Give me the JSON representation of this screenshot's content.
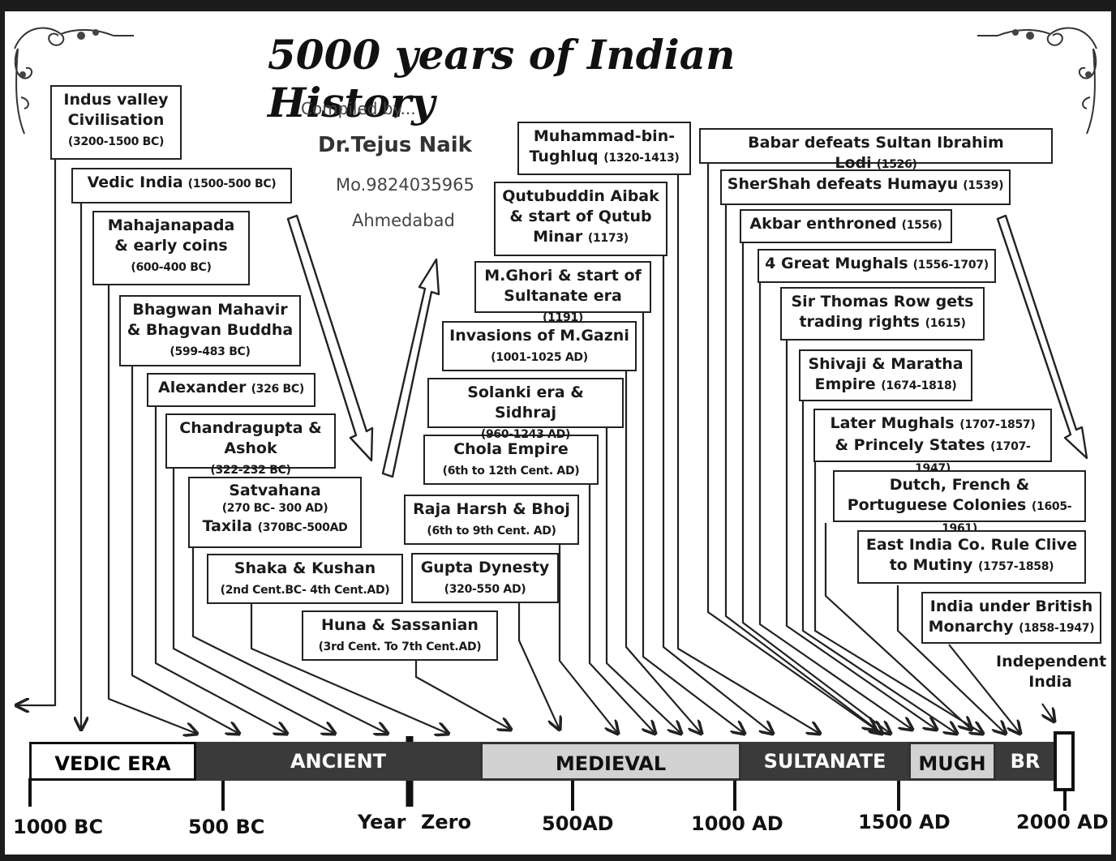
{
  "title": "5000 years of Indian History",
  "credits": {
    "compiled_by": "Compiled by...",
    "name": "Dr.Tejus Naik",
    "phone": "Mo.9824035965",
    "city": "Ahmedabad"
  },
  "events": [
    {
      "name": "Indus valley Civilisation",
      "date": "(3200-1500 BC)"
    },
    {
      "name": "Vedic India",
      "date": "(1500-500 BC)"
    },
    {
      "name": "Mahajanapada & early coins",
      "date": "(600-400 BC)"
    },
    {
      "name": "Bhagwan Mahavir & Bhagvan Buddha",
      "date": "(599-483 BC)"
    },
    {
      "name": "Alexander",
      "date": "(326 BC)"
    },
    {
      "name": "Chandragupta & Ashok",
      "date": "(322-232 BC)"
    },
    {
      "name": "Satvahana",
      "date": "(270 BC- 300 AD)",
      "name2": "Taxila",
      "date2": "(370BC-500AD"
    },
    {
      "name": "Shaka & Kushan",
      "date": "(2nd Cent.BC- 4th Cent.AD)"
    },
    {
      "name": "Huna & Sassanian",
      "date": "(3rd Cent. To 7th Cent.AD)"
    },
    {
      "name": "Gupta Dynesty",
      "date": "(320-550 AD)"
    },
    {
      "name": "Raja Harsh & Bhoj",
      "date": "(6th to 9th Cent. AD)"
    },
    {
      "name": "Chola Empire",
      "date": "(6th to 12th Cent. AD)"
    },
    {
      "name": "Solanki era & Sidhraj",
      "date": "(960-1243 AD)"
    },
    {
      "name": "Invasions of M.Gazni",
      "date": "(1001-1025 AD)"
    },
    {
      "name": "M.Ghori & start of Sultanate era",
      "date": "(1191)"
    },
    {
      "name": "Qutubuddin Aibak & start of Qutub Minar",
      "date": "(1173)"
    },
    {
      "name": "Muhammad-bin-Tughluq",
      "date": "(1320-1413)"
    },
    {
      "name": "Babar defeats Sultan Ibrahim Lodi",
      "date": "(1526)"
    },
    {
      "name": "SherShah defeats Humayu",
      "date": "(1539)"
    },
    {
      "name": "Akbar enthroned",
      "date": "(1556)"
    },
    {
      "name": "4 Great Mughals",
      "date": "(1556-1707)"
    },
    {
      "name": "Sir Thomas Row gets trading rights",
      "date": "(1615)"
    },
    {
      "name": "Shivaji & Maratha Empire",
      "date": "(1674-1818)"
    },
    {
      "name": "Later Mughals",
      "date": "(1707-1857)",
      "name2": "& Princely States",
      "date2": "(1707-1947)"
    },
    {
      "name": "Dutch, French & Portuguese Colonies",
      "date": "(1605-1961)"
    },
    {
      "name": "East India Co. Rule Clive to Mutiny",
      "date": "(1757-1858)"
    },
    {
      "name": "India under British Monarchy",
      "date": "(1858-1947)"
    },
    {
      "name": "Independent India",
      "date": ""
    }
  ],
  "eras": [
    {
      "label": "VEDIC ERA",
      "bg": "#ffffff",
      "fg": "#111111"
    },
    {
      "label": "ANCIENT",
      "bg": "#3a3a3a",
      "fg": "#ffffff"
    },
    {
      "label": "MEDIEVAL",
      "bg": "#d2d2d2",
      "fg": "#111111"
    },
    {
      "label": "SULTANATE",
      "bg": "#3a3a3a",
      "fg": "#ffffff"
    },
    {
      "label": "MUGH",
      "bg": "#d2d2d2",
      "fg": "#111111"
    },
    {
      "label": "BR",
      "bg": "#3a3a3a",
      "fg": "#ffffff"
    }
  ],
  "ticks": [
    "1000 BC",
    "500 BC",
    "Year",
    "Zero",
    "500AD",
    "1000 AD",
    "1500 AD",
    "2000 AD"
  ]
}
